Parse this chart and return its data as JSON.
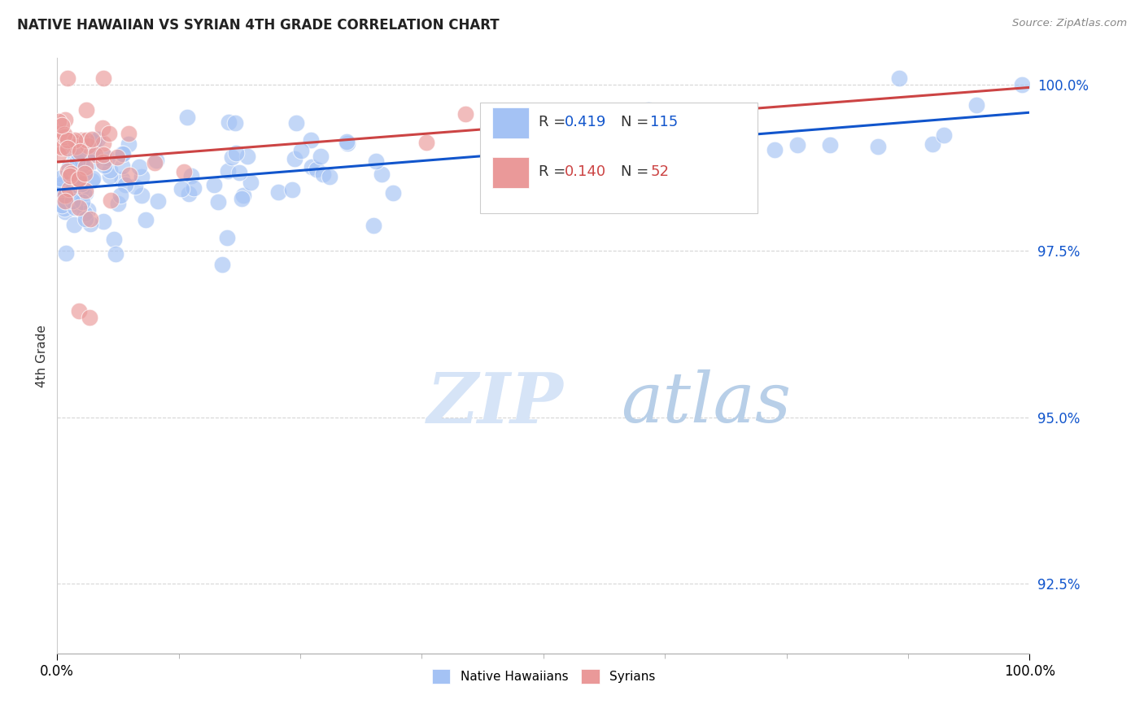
{
  "title": "NATIVE HAWAIIAN VS SYRIAN 4TH GRADE CORRELATION CHART",
  "source_text": "Source: ZipAtlas.com",
  "ylabel": "4th Grade",
  "xlim": [
    0.0,
    1.0
  ],
  "ylim": [
    0.9145,
    1.004
  ],
  "ytick_labels": [
    "92.5%",
    "95.0%",
    "97.5%",
    "100.0%"
  ],
  "ytick_values": [
    0.925,
    0.95,
    0.975,
    1.0
  ],
  "legend_label1": "Native Hawaiians",
  "legend_label2": "Syrians",
  "R_blue": 0.419,
  "N_blue": 115,
  "R_pink": 0.14,
  "N_pink": 52,
  "color_blue": "#a4c2f4",
  "color_pink": "#ea9999",
  "line_color_blue": "#1155cc",
  "line_color_pink": "#cc4444",
  "text_color_blue": "#1155cc",
  "text_color_pink": "#cc4444",
  "watermark_zip_color": "#c9daf8",
  "watermark_atlas_color": "#a8c4f0",
  "background_color": "#ffffff",
  "grid_color": "#cccccc"
}
